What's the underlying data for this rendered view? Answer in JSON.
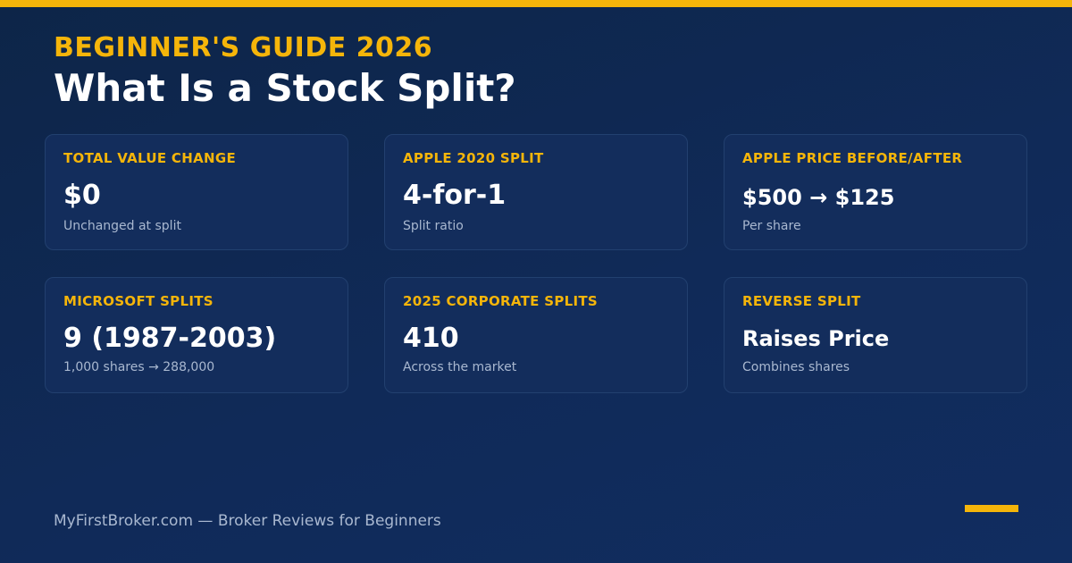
{
  "header": {
    "eyebrow": "BEGINNER'S GUIDE 2026",
    "title": "What Is a Stock Split?"
  },
  "cards": [
    {
      "label": "TOTAL VALUE CHANGE",
      "value": "$0",
      "sub": "Unchanged at split"
    },
    {
      "label": "APPLE 2020 SPLIT",
      "value": "4-for-1",
      "sub": "Split ratio"
    },
    {
      "label": "APPLE PRICE BEFORE/AFTER",
      "value": "$500 → $125",
      "sub": "Per share"
    },
    {
      "label": "MICROSOFT SPLITS",
      "value": "9 (1987-2003)",
      "sub": "1,000 shares → 288,000"
    },
    {
      "label": "2025 CORPORATE SPLITS",
      "value": "410",
      "sub": "Across the market"
    },
    {
      "label": "REVERSE SPLIT",
      "value": "Raises Price",
      "sub": "Combines shares"
    }
  ],
  "footer": {
    "text": "MyFirstBroker.com — Broker Reviews for Beginners"
  },
  "colors": {
    "accent": "#f5b50a",
    "background": "#0f2850",
    "card": "#132d5c",
    "muted_text": "#a9b8d0"
  }
}
